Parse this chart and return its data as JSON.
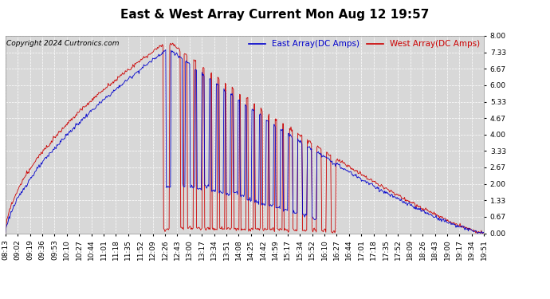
{
  "title": "East & West Array Current Mon Aug 12 19:57",
  "copyright": "Copyright 2024 Curtronics.com",
  "legend_east": "East Array(DC Amps)",
  "legend_west": "West Array(DC Amps)",
  "east_color": "#0000cc",
  "west_color": "#cc0000",
  "bg_color": "#ffffff",
  "plot_bg_color": "#d8d8d8",
  "grid_color": "#ffffff",
  "ylim": [
    0.0,
    8.0
  ],
  "yticks": [
    0.0,
    0.67,
    1.33,
    2.0,
    2.67,
    3.33,
    4.0,
    4.67,
    5.33,
    6.0,
    6.67,
    7.33,
    8.0
  ],
  "xtick_labels": [
    "08:13",
    "09:02",
    "09:19",
    "09:36",
    "09:53",
    "10:10",
    "10:27",
    "10:44",
    "11:01",
    "11:18",
    "11:35",
    "11:52",
    "12:09",
    "12:26",
    "12:43",
    "13:00",
    "13:17",
    "13:34",
    "13:51",
    "14:08",
    "14:25",
    "14:42",
    "14:59",
    "15:17",
    "15:34",
    "15:52",
    "16:10",
    "16:27",
    "16:44",
    "17:01",
    "17:18",
    "17:35",
    "17:52",
    "18:09",
    "18:26",
    "18:43",
    "19:00",
    "19:17",
    "19:34",
    "19:51"
  ],
  "title_fontsize": 11,
  "tick_fontsize": 6.5,
  "legend_fontsize": 7.5,
  "copyright_fontsize": 6.5
}
